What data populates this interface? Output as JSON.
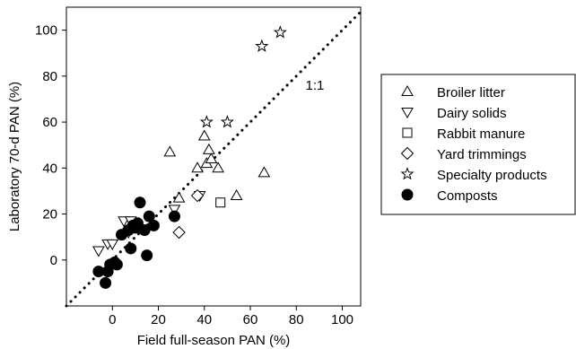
{
  "chart_data": {
    "type": "scatter",
    "xlabel": "Field full-season PAN (%)",
    "ylabel": "Laboratory 70-d PAN (%)",
    "xlim": [
      -20,
      108
    ],
    "ylim": [
      -20,
      110
    ],
    "xticks": [
      0,
      20,
      40,
      60,
      80,
      100
    ],
    "yticks": [
      0,
      20,
      40,
      60,
      80,
      100
    ],
    "grid": false,
    "legend_position": "right",
    "reference_line": {
      "label": "1:1",
      "style": "dotted",
      "from": [
        -20,
        -20
      ],
      "to": [
        108,
        108
      ]
    },
    "series": [
      {
        "name": "Broiler litter",
        "marker": "triangle-up",
        "points": [
          [
            25,
            47
          ],
          [
            29,
            27
          ],
          [
            37,
            40
          ],
          [
            40,
            54
          ],
          [
            41,
            42
          ],
          [
            42,
            48
          ],
          [
            43,
            44
          ],
          [
            46,
            40
          ],
          [
            54,
            28
          ],
          [
            66,
            38
          ]
        ]
      },
      {
        "name": "Dairy solids",
        "marker": "triangle-down",
        "points": [
          [
            -6,
            4
          ],
          [
            -2,
            7
          ],
          [
            0,
            7
          ],
          [
            5,
            17
          ],
          [
            7,
            12
          ],
          [
            8,
            17
          ],
          [
            27,
            22
          ],
          [
            38,
            28
          ]
        ]
      },
      {
        "name": "Rabbit manure",
        "marker": "square",
        "points": [
          [
            47,
            25
          ]
        ]
      },
      {
        "name": "Yard trimmings",
        "marker": "diamond",
        "points": [
          [
            29,
            12
          ],
          [
            37,
            28
          ]
        ]
      },
      {
        "name": "Specialty products",
        "marker": "star",
        "points": [
          [
            41,
            60
          ],
          [
            50,
            60
          ],
          [
            65,
            93
          ],
          [
            73,
            99
          ]
        ]
      },
      {
        "name": "Composts",
        "marker": "filled-circle",
        "points": [
          [
            -6,
            -5
          ],
          [
            -3,
            -10
          ],
          [
            -2,
            -5
          ],
          [
            -1,
            -2
          ],
          [
            1,
            -1
          ],
          [
            2,
            -2
          ],
          [
            4,
            11
          ],
          [
            7,
            13
          ],
          [
            8,
            5
          ],
          [
            9,
            15
          ],
          [
            10,
            14
          ],
          [
            11,
            16
          ],
          [
            12,
            25
          ],
          [
            14,
            13
          ],
          [
            15,
            2
          ],
          [
            16,
            19
          ],
          [
            18,
            15
          ],
          [
            27,
            19
          ]
        ]
      }
    ]
  }
}
